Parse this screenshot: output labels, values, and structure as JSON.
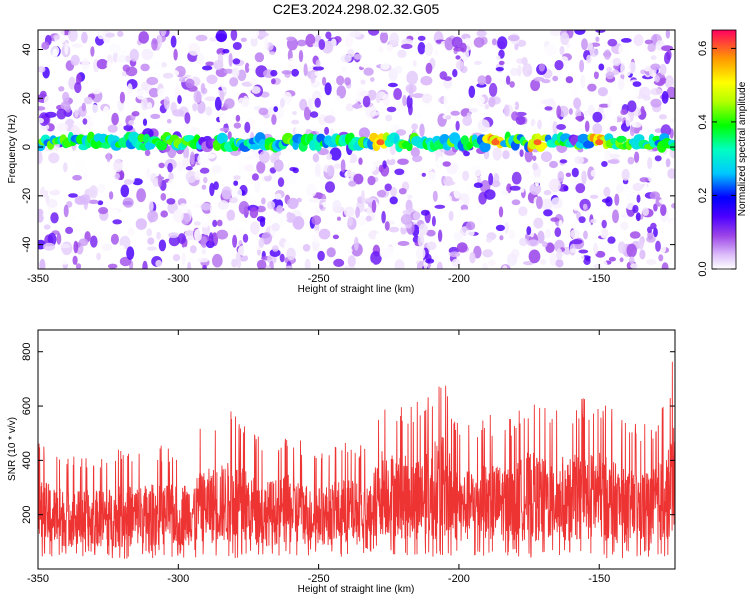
{
  "title": "C2E3.2024.298.02.32.G05",
  "chart_data": [
    {
      "type": "heatmap",
      "xlabel": "Height of straight line (km)",
      "ylabel": "Frequency (Hz)",
      "xlim": [
        -350,
        -123
      ],
      "ylim": [
        -50,
        48
      ],
      "xticks": [
        -350,
        -300,
        -250,
        -200,
        -150
      ],
      "yticks": [
        -40,
        -20,
        0,
        20,
        40
      ],
      "colorbar": {
        "label": "Normalized spectral amplitude",
        "range": [
          0,
          0.65
        ],
        "ticks": [
          "0.0",
          "0.2",
          "0.4",
          "0.6"
        ]
      },
      "features": {
        "band_center_hz": 2,
        "band_half_width_hz": 3,
        "band_peak_amplitude": 0.6,
        "band_peaks_km": [
          -228,
          -187,
          -172,
          -150
        ],
        "background_amplitude": [
          0.0,
          0.15
        ]
      }
    },
    {
      "type": "line",
      "xlabel": "Height of straight line (km)",
      "ylabel": "SNR (10 * v/v)",
      "xlim": [
        -350,
        -123
      ],
      "ylim": [
        0,
        880
      ],
      "xticks": [
        -350,
        -300,
        -250,
        -200,
        -150
      ],
      "yticks": [
        200,
        400,
        600,
        800
      ],
      "color": "#ee3333",
      "series": [
        {
          "envelope": {
            "x": [
              -350,
              -340,
              -330,
              -320,
              -310,
              -300,
              -290,
              -280,
              -270,
              -260,
              -250,
              -240,
              -232,
              -228,
              -220,
              -210,
              -207,
              -200,
              -190,
              -180,
              -175,
              -170,
              -160,
              -150,
              -140,
              -130,
              -125,
              -123
            ],
            "min": [
              40,
              40,
              40,
              35,
              40,
              40,
              40,
              35,
              40,
              40,
              45,
              40,
              50,
              60,
              50,
              40,
              40,
              45,
              50,
              45,
              40,
              40,
              40,
              40,
              40,
              40,
              40,
              40
            ],
            "max": [
              480,
              430,
              420,
              450,
              460,
              450,
              540,
              600,
              470,
              510,
              440,
              490,
              440,
              660,
              610,
              640,
              770,
              520,
              570,
              560,
              650,
              600,
              620,
              640,
              530,
              560,
              660,
              870
            ]
          }
        }
      ]
    }
  ]
}
